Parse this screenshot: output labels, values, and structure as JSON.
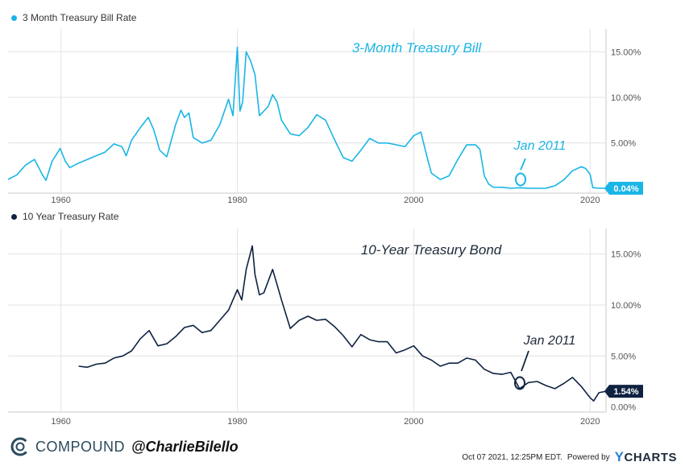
{
  "chart_data": [
    {
      "type": "line",
      "legend_label": "3 Month Treasury Bill Rate",
      "annotation_title": "3-Month Treasury Bill",
      "callout": "Jan 2011",
      "last_value_label": "0.04%",
      "color": "#19b5e6",
      "x_ticks": [
        "1960",
        "1980",
        "2000",
        "2020"
      ],
      "y_ticks": [
        "5.00%",
        "10.00%",
        "15.00%"
      ],
      "xlim": [
        1954,
        2021.8
      ],
      "ylim": [
        -0.5,
        17.5
      ],
      "grid": true,
      "x": [
        1954.0,
        1955.0,
        1956.0,
        1957.0,
        1957.9,
        1958.3,
        1959.0,
        1959.9,
        1960.5,
        1961.0,
        1962.0,
        1963.0,
        1964.0,
        1965.0,
        1966.0,
        1966.9,
        1967.4,
        1968.0,
        1969.0,
        1969.9,
        1970.5,
        1971.2,
        1972.0,
        1973.0,
        1973.6,
        1974.0,
        1974.5,
        1975.0,
        1976.0,
        1977.0,
        1978.0,
        1979.0,
        1979.5,
        1980.0,
        1980.3,
        1980.6,
        1981.0,
        1981.5,
        1982.0,
        1982.5,
        1983.0,
        1983.5,
        1984.0,
        1984.5,
        1985.0,
        1986.0,
        1987.0,
        1988.0,
        1989.0,
        1990.0,
        1991.0,
        1992.0,
        1993.0,
        1994.0,
        1995.0,
        1996.0,
        1997.0,
        1998.0,
        1999.0,
        2000.0,
        2000.8,
        2001.5,
        2002.0,
        2003.0,
        2004.0,
        2005.0,
        2006.0,
        2007.0,
        2007.5,
        2008.0,
        2008.5,
        2009.0,
        2010.0,
        2011.0,
        2012.0,
        2013.0,
        2014.0,
        2015.0,
        2016.0,
        2017.0,
        2018.0,
        2019.0,
        2019.5,
        2020.0,
        2020.3,
        2021.0,
        2021.8
      ],
      "y": [
        1.0,
        1.5,
        2.6,
        3.2,
        1.5,
        0.9,
        3.0,
        4.4,
        3.0,
        2.3,
        2.8,
        3.2,
        3.6,
        4.0,
        4.9,
        4.6,
        3.6,
        5.3,
        6.7,
        7.8,
        6.5,
        4.2,
        3.5,
        7.0,
        8.6,
        7.8,
        8.3,
        5.6,
        5.0,
        5.3,
        7.0,
        9.8,
        8.0,
        15.5,
        8.5,
        9.5,
        15.0,
        14.0,
        12.5,
        8.0,
        8.5,
        9.0,
        10.3,
        9.5,
        7.5,
        6.0,
        5.8,
        6.7,
        8.1,
        7.5,
        5.4,
        3.4,
        3.0,
        4.2,
        5.5,
        5.0,
        5.0,
        4.8,
        4.6,
        5.8,
        6.2,
        3.5,
        1.7,
        1.0,
        1.4,
        3.2,
        4.8,
        4.8,
        4.3,
        1.4,
        0.5,
        0.15,
        0.14,
        0.05,
        0.09,
        0.05,
        0.03,
        0.05,
        0.3,
        0.95,
        1.95,
        2.4,
        2.2,
        1.55,
        0.1,
        0.05,
        0.04
      ]
    },
    {
      "type": "line",
      "legend_label": "10 Year Treasury Rate",
      "annotation_title": "10-Year Treasury Bond",
      "callout": "Jan 2011",
      "last_value_label": "1.54%",
      "color": "#0f2240",
      "x_ticks": [
        "1960",
        "1980",
        "2000",
        "2020"
      ],
      "y_ticks": [
        "0.00%",
        "5.00%",
        "10.00%",
        "15.00%"
      ],
      "xlim": [
        1954,
        2021.8
      ],
      "ylim": [
        -0.5,
        17.5
      ],
      "grid": true,
      "x": [
        1962.0,
        1963.0,
        1964.0,
        1965.0,
        1966.0,
        1967.0,
        1968.0,
        1969.0,
        1970.0,
        1971.0,
        1972.0,
        1973.0,
        1974.0,
        1975.0,
        1976.0,
        1977.0,
        1978.0,
        1979.0,
        1980.0,
        1980.5,
        1981.0,
        1981.7,
        1982.0,
        1982.5,
        1983.0,
        1984.0,
        1984.5,
        1985.0,
        1986.0,
        1987.0,
        1988.0,
        1989.0,
        1990.0,
        1991.0,
        1992.0,
        1993.0,
        1994.0,
        1995.0,
        1996.0,
        1997.0,
        1998.0,
        1999.0,
        2000.0,
        2001.0,
        2002.0,
        2003.0,
        2004.0,
        2005.0,
        2006.0,
        2007.0,
        2008.0,
        2009.0,
        2010.0,
        2011.0,
        2012.0,
        2013.0,
        2014.0,
        2015.0,
        2016.0,
        2017.0,
        2018.0,
        2019.0,
        2020.0,
        2020.4,
        2021.0,
        2021.8
      ],
      "y": [
        4.0,
        3.9,
        4.2,
        4.3,
        4.8,
        5.0,
        5.5,
        6.7,
        7.5,
        6.0,
        6.2,
        6.9,
        7.8,
        8.0,
        7.3,
        7.5,
        8.5,
        9.5,
        11.5,
        10.5,
        13.5,
        15.8,
        13.0,
        11.0,
        11.2,
        13.5,
        12.0,
        10.5,
        7.7,
        8.5,
        8.9,
        8.5,
        8.6,
        7.9,
        7.0,
        5.9,
        7.1,
        6.6,
        6.4,
        6.4,
        5.3,
        5.6,
        6.0,
        5.0,
        4.6,
        4.0,
        4.3,
        4.3,
        4.8,
        4.6,
        3.7,
        3.3,
        3.2,
        3.4,
        1.8,
        2.4,
        2.5,
        2.1,
        1.8,
        2.3,
        2.9,
        2.0,
        0.9,
        0.6,
        1.4,
        1.54
      ]
    }
  ],
  "footer": {
    "brand": "COMPOUND",
    "handle": "@CharlieBilello",
    "timestamp": "Oct 07 2021, 12:25PM EDT.",
    "powered_by": "Powered by",
    "ycharts_y": "Y",
    "ycharts_rest": "CHARTS"
  }
}
